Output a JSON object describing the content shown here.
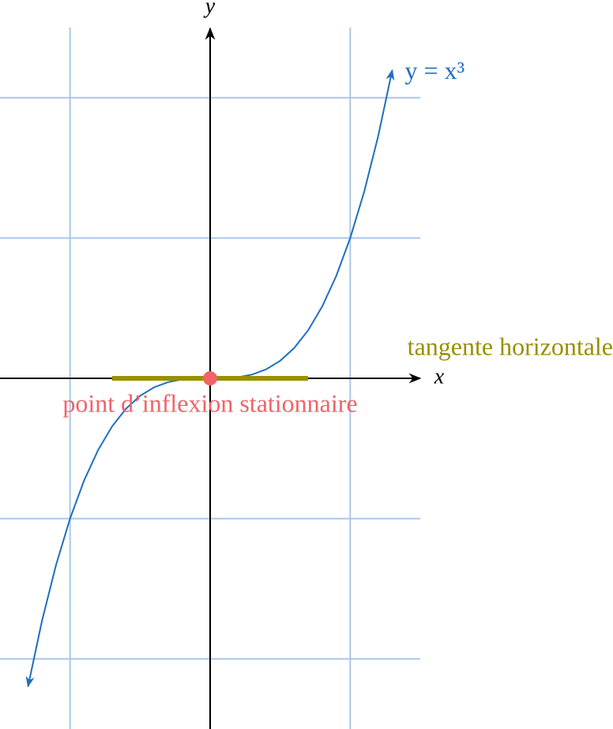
{
  "chart_data": {
    "type": "line",
    "x_label": "x",
    "y_label": "y",
    "xlim": [
      -1.5,
      1.5
    ],
    "ylim": [
      -2.5,
      2.5
    ],
    "xgrid": [
      -1,
      1
    ],
    "ygrid": [
      -2,
      -1,
      1,
      2
    ],
    "grid": true,
    "x": [
      -1.3,
      -1.2,
      -1.1,
      -1,
      -0.9,
      -0.8,
      -0.7,
      -0.6,
      -0.5,
      -0.4,
      -0.3,
      -0.2,
      -0.1,
      0,
      0.1,
      0.2,
      0.3,
      0.4,
      0.5,
      0.6,
      0.7,
      0.8,
      0.9,
      1,
      1.1,
      1.2,
      1.3
    ],
    "series": [
      {
        "name": "y = x³",
        "color": "#1f6fbf",
        "values": [
          -2.197,
          -1.728,
          -1.331,
          -1,
          -0.729,
          -0.512,
          -0.343,
          -0.216,
          -0.125,
          -0.064,
          -0.027,
          -0.008,
          -0.001,
          0,
          0.001,
          0.008,
          0.027,
          0.064,
          0.125,
          0.216,
          0.343,
          0.512,
          0.729,
          1,
          1.331,
          1.728,
          2.197
        ]
      }
    ],
    "tangent": {
      "label": "tangente horizontale",
      "color": "#998f00",
      "x": [
        -0.7,
        0.7
      ],
      "y": 0
    },
    "point": {
      "label": "point d’inflexion stationnaire",
      "color": "#f06468",
      "x": 0,
      "y": 0
    }
  }
}
